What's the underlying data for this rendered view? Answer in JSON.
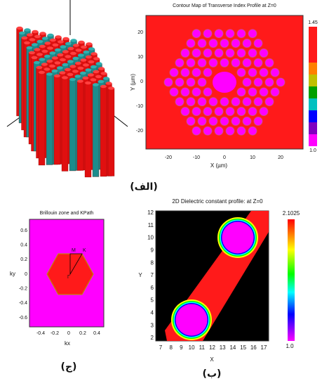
{
  "figure": {
    "panel_a": {
      "caption": "(الف)",
      "title": "Contour Map of Transverse Index Profile at Z=0",
      "x_label": "X (µm)",
      "y_label": "Y (µm)",
      "x_ticks": [
        "-20",
        "-10",
        "0",
        "10",
        "20"
      ],
      "y_ticks": [
        "20",
        "10",
        "0",
        "-10",
        "-20"
      ],
      "colorbar": {
        "max": "1.45",
        "min": "1.0"
      }
    },
    "panel_c": {
      "caption": "(ج)",
      "title": "Brillouin zone and KPath",
      "x_label": "kx",
      "y_label": "ky",
      "x_ticks": [
        "-0.4",
        "-0.2",
        "0",
        "0.2",
        "0.4"
      ],
      "y_ticks": [
        "0.6",
        "0.4",
        "0.2",
        "0",
        "-0.2",
        "-0.4",
        "-0.6"
      ],
      "points": [
        "M",
        "K",
        "Γ"
      ]
    },
    "panel_b": {
      "caption": "(ب)",
      "title": "2D Dielectric constant profile:  at Z=0",
      "x_label": "X",
      "y_label": "Y",
      "x_ticks": [
        "7",
        "8",
        "9",
        "10",
        "11",
        "12",
        "13",
        "14",
        "15",
        "16",
        "17"
      ],
      "y_ticks": [
        "12",
        "11",
        "10",
        "9",
        "8",
        "7",
        "6",
        "5",
        "4",
        "3",
        "2"
      ],
      "colorbar": {
        "max": "2.1025",
        "min": "1.0"
      }
    }
  }
}
